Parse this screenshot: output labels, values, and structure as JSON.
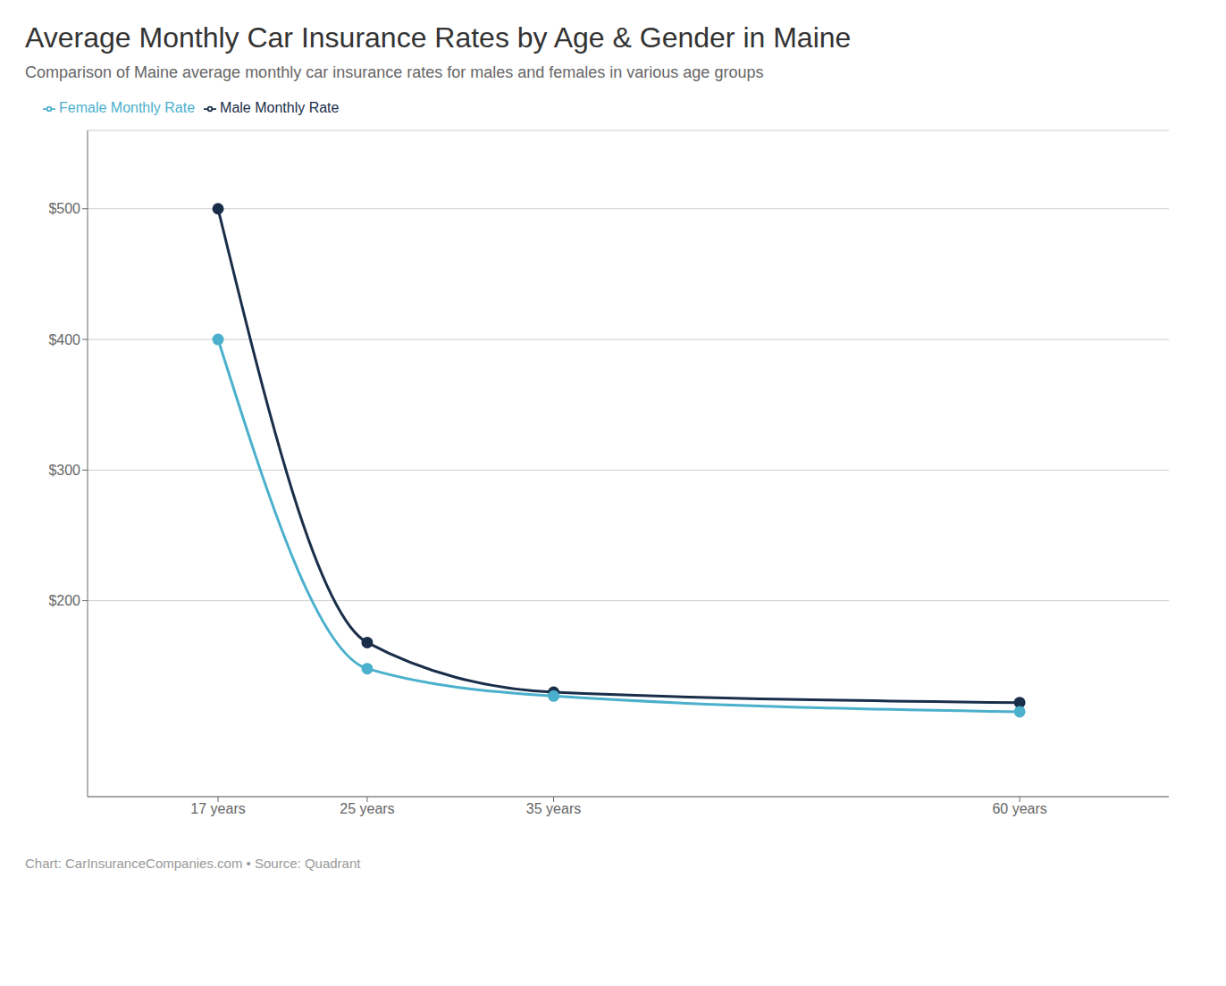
{
  "chart_data": {
    "type": "line",
    "title": "Average Monthly Car Insurance Rates by Age & Gender in Maine",
    "subtitle": "Comparison of Maine average monthly car insurance rates for males and females in various age groups",
    "annotations": [
      "Chart: CarInsuranceCompanies.com • Source: Quadrant"
    ],
    "x": [
      17,
      25,
      35,
      60
    ],
    "series": [
      {
        "name": "Male Monthly Rate",
        "color": "#1a2e4a",
        "values": [
          500,
          168,
          130,
          122
        ],
        "marker": "circle",
        "line_style": "solid"
      },
      {
        "name": "Female Monthly Rate",
        "color": "#4ab0cc",
        "values": [
          400,
          148,
          127,
          115
        ],
        "marker": "circle",
        "line_style": "solid"
      }
    ],
    "xlim": [
      10,
      68
    ],
    "xticks": [
      {
        "value": 17,
        "label": "17 years"
      },
      {
        "value": 25,
        "label": "25 years"
      },
      {
        "value": 35,
        "label": "35 years"
      },
      {
        "value": 60,
        "label": "60 years"
      }
    ],
    "ylim": [
      50,
      560
    ],
    "yticks": [
      {
        "value": 200,
        "label": "$200"
      },
      {
        "value": 300,
        "label": "$300"
      },
      {
        "value": 400,
        "label": "$400"
      },
      {
        "value": 500,
        "label": "$500"
      }
    ],
    "grid": true,
    "legend": "top-left"
  }
}
